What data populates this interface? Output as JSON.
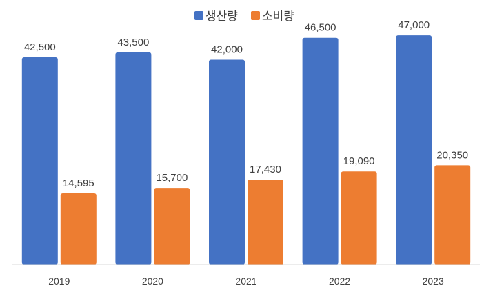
{
  "chart_data": {
    "type": "bar",
    "title": "",
    "xlabel": "",
    "ylabel": "",
    "categories": [
      "2019",
      "2020",
      "2021",
      "2022",
      "2023"
    ],
    "series": [
      {
        "name": "생산량",
        "color": "#4472C4",
        "values": [
          42500,
          43500,
          42000,
          46500,
          47000
        ]
      },
      {
        "name": "소비량",
        "color": "#ED7D31",
        "values": [
          14595,
          15700,
          17430,
          19090,
          20350
        ]
      }
    ],
    "data_labels": [
      [
        "42,500",
        "43,500",
        "42,000",
        "46,500",
        "47,000"
      ],
      [
        "14,595",
        "15,700",
        "17,430",
        "19,090",
        "20,350"
      ]
    ],
    "ylim": [
      0,
      50000
    ],
    "grid": false,
    "legend_position": "top"
  }
}
